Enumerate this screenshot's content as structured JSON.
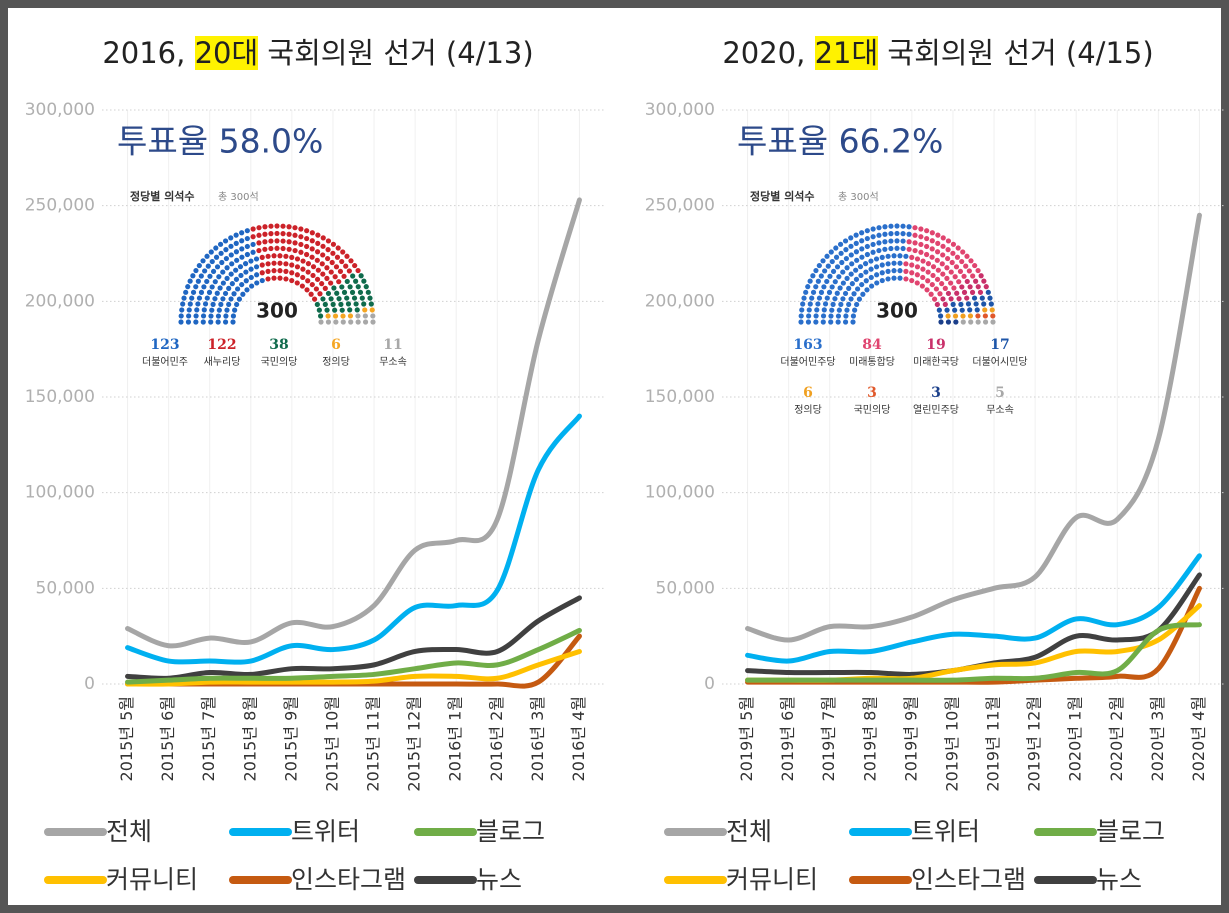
{
  "chart_data": [
    {
      "type": "line",
      "title_parts": [
        "2016, ",
        "20대",
        " 국회의원 선거 (4/13)"
      ],
      "annotation": "투표율 58.0%",
      "categories": [
        "2015년 5월",
        "2015년 6월",
        "2015년 7월",
        "2015년 8월",
        "2015년 9월",
        "2015년 10월",
        "2015년 11월",
        "2015년 12월",
        "2016년 1월",
        "2016년 2월",
        "2016년 3월",
        "2016년 4월"
      ],
      "series": [
        {
          "name": "전체",
          "color": "#a6a6a6",
          "values": [
            29000,
            20000,
            24000,
            22000,
            32000,
            30000,
            41000,
            70000,
            75000,
            86000,
            180000,
            253000
          ]
        },
        {
          "name": "트위터",
          "color": "#00b0f0",
          "values": [
            19000,
            12000,
            12000,
            12000,
            20000,
            18000,
            23000,
            40000,
            41000,
            49000,
            112000,
            140000
          ]
        },
        {
          "name": "블로그",
          "color": "#70ad47",
          "values": [
            1000,
            2000,
            3000,
            3000,
            3000,
            4000,
            5000,
            8000,
            11000,
            10000,
            18000,
            28000
          ]
        },
        {
          "name": "커뮤니티",
          "color": "#ffc000",
          "values": [
            0,
            0,
            1000,
            1000,
            1000,
            1000,
            1500,
            4000,
            4000,
            3000,
            10000,
            17000
          ]
        },
        {
          "name": "인스타그램",
          "color": "#c55a11",
          "values": [
            0,
            0,
            0,
            0,
            0,
            0,
            0,
            0,
            0,
            0,
            1000,
            25000
          ]
        },
        {
          "name": "뉴스",
          "color": "#404040",
          "values": [
            4000,
            3000,
            6000,
            5000,
            8000,
            8000,
            10000,
            17000,
            18000,
            17000,
            33000,
            45000
          ]
        }
      ],
      "ylim": [
        0,
        300000
      ],
      "yticks": [
        0,
        {
          "value": 50000,
          "label": "50,000"
        },
        {
          "value": 100000,
          "label": "100,000"
        },
        {
          "value": 150000,
          "label": "150,000"
        },
        {
          "value": 200000,
          "label": "200,000"
        },
        {
          "value": 250000,
          "label": "250,000"
        },
        {
          "value": 300000,
          "label": "300,000"
        }
      ],
      "grid": true,
      "inset": {
        "title": "정당별 의석수",
        "subtitle": "총 300석",
        "total": 300,
        "parties": [
          {
            "name": "더불어민주",
            "seats": 123,
            "color": "#1f66c2"
          },
          {
            "name": "새누리당",
            "seats": 122,
            "color": "#cc2229"
          },
          {
            "name": "국민의당",
            "seats": 38,
            "color": "#0f6b4c"
          },
          {
            "name": "정의당",
            "seats": 6,
            "color": "#f5a623"
          },
          {
            "name": "무소속",
            "seats": 11,
            "color": "#a8a8a8"
          }
        ]
      }
    },
    {
      "type": "line",
      "title_parts": [
        "2020, ",
        "21대",
        " 국회의원 선거 (4/15)"
      ],
      "annotation": "투표율 66.2%",
      "categories": [
        "2019년 5월",
        "2019년 6월",
        "2019년 7월",
        "2019년 8월",
        "2019년 9월",
        "2019년 10월",
        "2019년 11월",
        "2019년 12월",
        "2020년 1월",
        "2020년 2월",
        "2020년 3월",
        "2020년 4월"
      ],
      "series": [
        {
          "name": "전체",
          "color": "#a6a6a6",
          "values": [
            29000,
            23000,
            30000,
            30000,
            35000,
            44000,
            50000,
            56000,
            87000,
            86000,
            128000,
            245000
          ]
        },
        {
          "name": "트위터",
          "color": "#00b0f0",
          "values": [
            15000,
            12000,
            17000,
            17000,
            22000,
            26000,
            25000,
            24000,
            34000,
            31000,
            40000,
            67000
          ]
        },
        {
          "name": "블로그",
          "color": "#70ad47",
          "values": [
            2000,
            2000,
            2000,
            2000,
            2000,
            2000,
            3000,
            3000,
            6000,
            7000,
            28000,
            31000
          ]
        },
        {
          "name": "커뮤니티",
          "color": "#ffc000",
          "values": [
            2000,
            2000,
            2000,
            3000,
            3000,
            7000,
            10000,
            11000,
            17000,
            17000,
            23000,
            41000
          ]
        },
        {
          "name": "인스타그램",
          "color": "#c55a11",
          "values": [
            1000,
            1000,
            1000,
            1000,
            1000,
            1000,
            1000,
            2000,
            3000,
            4000,
            8000,
            50000
          ]
        },
        {
          "name": "뉴스",
          "color": "#404040",
          "values": [
            7000,
            6000,
            6000,
            6000,
            5000,
            7000,
            11000,
            14000,
            25000,
            23000,
            28000,
            57000
          ]
        }
      ],
      "ylim": [
        0,
        300000
      ],
      "yticks": [
        0,
        {
          "value": 50000,
          "label": "50,000"
        },
        {
          "value": 100000,
          "label": "100,000"
        },
        {
          "value": 150000,
          "label": "150,000"
        },
        {
          "value": 200000,
          "label": "200,000"
        },
        {
          "value": 250000,
          "label": "250,000"
        },
        {
          "value": 300000,
          "label": "300,000"
        }
      ],
      "grid": true,
      "inset": {
        "title": "정당별 의석수",
        "subtitle": "총 300석",
        "total": 300,
        "parties": [
          {
            "name": "더불어민주당",
            "seats": 163,
            "color": "#2a6fcb"
          },
          {
            "name": "미래통합당",
            "seats": 84,
            "color": "#e0446f"
          },
          {
            "name": "미래한국당",
            "seats": 19,
            "color": "#c9306a"
          },
          {
            "name": "더불어시민당",
            "seats": 17,
            "color": "#1d55a8"
          },
          {
            "name": "정의당",
            "seats": 6,
            "color": "#f0a020"
          },
          {
            "name": "국민의당",
            "seats": 3,
            "color": "#e0582a"
          },
          {
            "name": "열린민주당",
            "seats": 3,
            "color": "#1b3f8a"
          },
          {
            "name": "무소속",
            "seats": 5,
            "color": "#a8a8a8"
          }
        ]
      }
    }
  ]
}
